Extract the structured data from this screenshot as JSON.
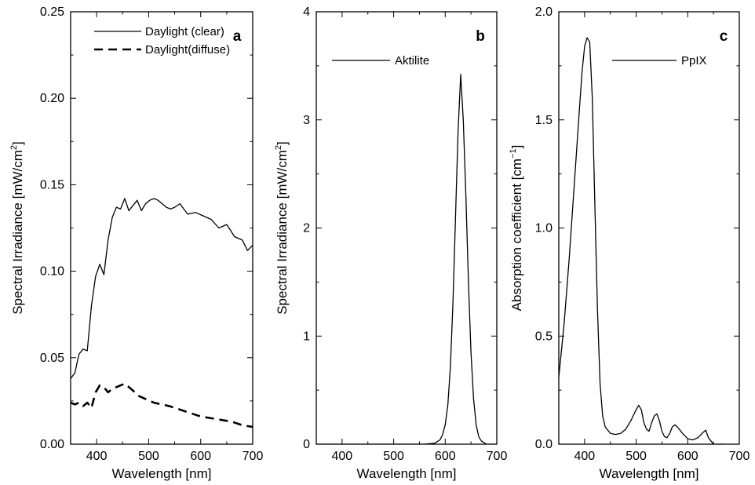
{
  "chart_data": [
    {
      "type": "line",
      "panel_label": "a",
      "xlabel": "Wavelength [nm]",
      "ylabel": "Spectral Irradiance [mW/cm",
      "ylabel_superscript": "2",
      "ylabel_suffix": "]",
      "xlim": [
        350,
        700
      ],
      "ylim": [
        0.0,
        0.25
      ],
      "xticks": [
        400,
        500,
        600,
        700
      ],
      "xtick_labels": [
        "400",
        "500",
        "600",
        "700"
      ],
      "yticks": [
        0.0,
        0.05,
        0.1,
        0.15,
        0.2,
        0.25
      ],
      "ytick_labels": [
        "0.00",
        "0.05",
        "0.10",
        "0.15",
        "0.20",
        "0.25"
      ],
      "legend_position": "top-right",
      "series": [
        {
          "name": "Daylight (clear)",
          "style": "solid",
          "x": [
            350,
            358,
            366,
            374,
            382,
            390,
            398,
            406,
            414,
            422,
            430,
            438,
            446,
            454,
            462,
            470,
            478,
            486,
            494,
            502,
            510,
            518,
            526,
            534,
            542,
            550,
            560,
            575,
            590,
            605,
            620,
            635,
            650,
            665,
            680,
            690,
            700
          ],
          "y": [
            0.038,
            0.041,
            0.052,
            0.055,
            0.054,
            0.08,
            0.097,
            0.104,
            0.098,
            0.118,
            0.131,
            0.137,
            0.136,
            0.142,
            0.135,
            0.138,
            0.141,
            0.135,
            0.139,
            0.141,
            0.142,
            0.141,
            0.139,
            0.137,
            0.136,
            0.137,
            0.139,
            0.133,
            0.134,
            0.132,
            0.13,
            0.125,
            0.127,
            0.12,
            0.118,
            0.112,
            0.115
          ]
        },
        {
          "name": "Daylight(diffuse)",
          "style": "dashed",
          "x": [
            350,
            358,
            366,
            374,
            382,
            390,
            398,
            406,
            414,
            422,
            430,
            438,
            446,
            454,
            462,
            470,
            480,
            495,
            510,
            525,
            540,
            560,
            580,
            600,
            620,
            640,
            660,
            680,
            700
          ],
          "y": [
            0.024,
            0.023,
            0.024,
            0.022,
            0.024,
            0.021,
            0.03,
            0.034,
            0.033,
            0.03,
            0.032,
            0.033,
            0.034,
            0.035,
            0.033,
            0.031,
            0.028,
            0.026,
            0.024,
            0.023,
            0.022,
            0.02,
            0.018,
            0.016,
            0.015,
            0.014,
            0.013,
            0.011,
            0.01
          ]
        }
      ]
    },
    {
      "type": "line",
      "panel_label": "b",
      "xlabel": "Wavelength [nm]",
      "ylabel": "Spectral Irradiance [mW/cm",
      "ylabel_superscript": "2",
      "ylabel_suffix": "]",
      "xlim": [
        350,
        700
      ],
      "ylim": [
        0,
        4
      ],
      "xticks": [
        400,
        500,
        600,
        700
      ],
      "xtick_labels": [
        "400",
        "500",
        "600",
        "700"
      ],
      "yticks": [
        0,
        1,
        2,
        3,
        4
      ],
      "ytick_labels": [
        "0",
        "1",
        "2",
        "3",
        "4"
      ],
      "legend_position": "top-left",
      "series": [
        {
          "name": "Aktilite",
          "style": "solid",
          "x": [
            350,
            560,
            580,
            590,
            595,
            600,
            605,
            610,
            615,
            620,
            625,
            630,
            635,
            640,
            645,
            650,
            655,
            660,
            665,
            670,
            680,
            700
          ],
          "y": [
            0,
            0.0,
            0.01,
            0.04,
            0.09,
            0.18,
            0.36,
            0.72,
            1.3,
            2.1,
            2.9,
            3.42,
            3.0,
            2.3,
            1.5,
            0.85,
            0.42,
            0.18,
            0.07,
            0.03,
            0.0,
            0.0
          ]
        }
      ]
    },
    {
      "type": "line",
      "panel_label": "c",
      "xlabel": "Wavelength [nm]",
      "ylabel": "Absorption coefficient [cm",
      "ylabel_superscript": "−1",
      "ylabel_suffix": "]",
      "xlim": [
        350,
        700
      ],
      "ylim": [
        0.0,
        2.0
      ],
      "xticks": [
        400,
        500,
        600,
        700
      ],
      "xtick_labels": [
        "400",
        "500",
        "600",
        "700"
      ],
      "yticks": [
        0.0,
        0.5,
        1.0,
        1.5,
        2.0
      ],
      "ytick_labels": [
        "0.0",
        "0.5",
        "1.0",
        "1.5",
        "2.0"
      ],
      "legend_position": "top-right",
      "series": [
        {
          "name": "PpIX",
          "style": "solid",
          "x": [
            350,
            360,
            370,
            380,
            390,
            395,
            400,
            405,
            410,
            415,
            420,
            425,
            430,
            435,
            440,
            450,
            460,
            470,
            480,
            490,
            500,
            505,
            510,
            515,
            520,
            525,
            530,
            535,
            540,
            545,
            550,
            555,
            560,
            565,
            570,
            575,
            580,
            590,
            600,
            610,
            620,
            630,
            635,
            640,
            650,
            660,
            670
          ],
          "y": [
            0.31,
            0.55,
            0.85,
            1.2,
            1.55,
            1.72,
            1.84,
            1.88,
            1.86,
            1.6,
            1.1,
            0.62,
            0.28,
            0.13,
            0.08,
            0.05,
            0.045,
            0.05,
            0.07,
            0.11,
            0.16,
            0.18,
            0.16,
            0.1,
            0.07,
            0.06,
            0.1,
            0.13,
            0.14,
            0.11,
            0.06,
            0.035,
            0.03,
            0.05,
            0.08,
            0.09,
            0.08,
            0.05,
            0.025,
            0.02,
            0.03,
            0.055,
            0.065,
            0.03,
            0.0,
            0.0,
            0.0
          ]
        }
      ]
    }
  ]
}
